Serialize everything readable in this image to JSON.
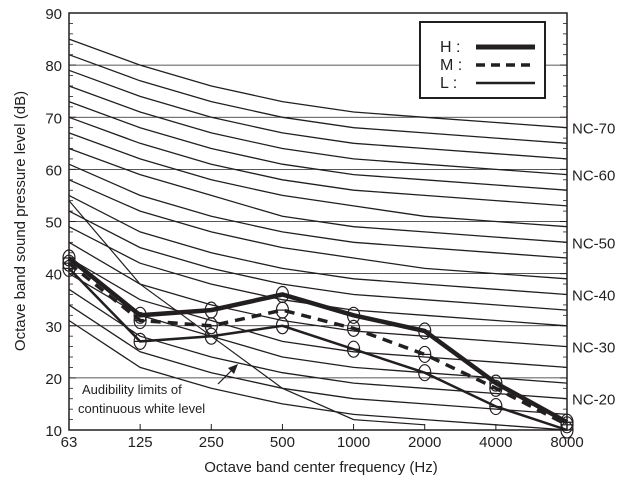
{
  "chart_data": {
    "type": "line",
    "xlabel": "Octave band center frequency (Hz)",
    "ylabel": "Octave band sound pressure level (dB)",
    "x": [
      "63",
      "125",
      "250",
      "500",
      "1000",
      "2000",
      "4000",
      "8000"
    ],
    "ylim": [
      10,
      90
    ],
    "yticks": [
      "10",
      "20",
      "30",
      "40",
      "50",
      "60",
      "70",
      "80",
      "90"
    ],
    "grid": "horizontal",
    "legend_position": "top-right",
    "legend": {
      "H": "H :",
      "M": "M :",
      "L": "L :"
    },
    "nc_curves": [
      {
        "name": "NC-70",
        "values": [
          85,
          80,
          76,
          73,
          71,
          70,
          69,
          68
        ]
      },
      {
        "name": "",
        "values": [
          82,
          77,
          73,
          70,
          68,
          67,
          66,
          65
        ]
      },
      {
        "name": "",
        "values": [
          79,
          74,
          70,
          67,
          65,
          64,
          63,
          62
        ]
      },
      {
        "name": "NC-60",
        "values": [
          76,
          71,
          67,
          64,
          62,
          61,
          60,
          59
        ]
      },
      {
        "name": "",
        "values": [
          73,
          68,
          64,
          61,
          59,
          58,
          57,
          56
        ]
      },
      {
        "name": "",
        "values": [
          70,
          65,
          61,
          58,
          56,
          55,
          54,
          53
        ]
      },
      {
        "name": "",
        "values": [
          67,
          62,
          58,
          55,
          53,
          51,
          50,
          49
        ]
      },
      {
        "name": "NC-50",
        "values": [
          64,
          59,
          55,
          51,
          49,
          48,
          47,
          46
        ]
      },
      {
        "name": "",
        "values": [
          61,
          55,
          51,
          48,
          46,
          45,
          44,
          43
        ]
      },
      {
        "name": "",
        "values": [
          58,
          52,
          48,
          45,
          43,
          41,
          40,
          39
        ]
      },
      {
        "name": "NC-40",
        "values": [
          55,
          48,
          44,
          41,
          39,
          38,
          37,
          36
        ]
      },
      {
        "name": "",
        "values": [
          52,
          45,
          41,
          38,
          36,
          35,
          34,
          33
        ]
      },
      {
        "name": "",
        "values": [
          49,
          42,
          38,
          35,
          33,
          32,
          31,
          30
        ]
      },
      {
        "name": "NC-30",
        "values": [
          46,
          38,
          34,
          31,
          29,
          28,
          27,
          26
        ]
      },
      {
        "name": "",
        "values": [
          43,
          35,
          31,
          27,
          25,
          24,
          23,
          22
        ]
      },
      {
        "name": "",
        "values": [
          40,
          32,
          28,
          24,
          22,
          21,
          20,
          19
        ]
      },
      {
        "name": "NC-20",
        "values": [
          37,
          28,
          24,
          21,
          19,
          18,
          17,
          16
        ]
      },
      {
        "name": "",
        "values": [
          34,
          25,
          21,
          18,
          16,
          15,
          14,
          13
        ]
      },
      {
        "name": "",
        "values": [
          31,
          22,
          18,
          15,
          13,
          12,
          11,
          10
        ]
      }
    ],
    "audibility_limit": {
      "values": [
        54,
        38,
        28,
        18,
        12,
        11
      ],
      "label_line1": "Audibility limits of",
      "label_line2": "continuous white level"
    },
    "series": [
      {
        "name": "H",
        "style": "thick-solid",
        "values": [
          43,
          32,
          33,
          36,
          32,
          29,
          19,
          11.5
        ]
      },
      {
        "name": "M",
        "style": "dashed",
        "values": [
          42,
          31,
          30,
          33,
          29.5,
          24.5,
          18,
          11
        ]
      },
      {
        "name": "L",
        "style": "solid",
        "values": [
          41,
          27,
          28,
          30,
          25.5,
          21,
          14.5,
          10
        ]
      }
    ],
    "colors": {
      "ink": "#231f20",
      "background": "#ffffff"
    }
  }
}
